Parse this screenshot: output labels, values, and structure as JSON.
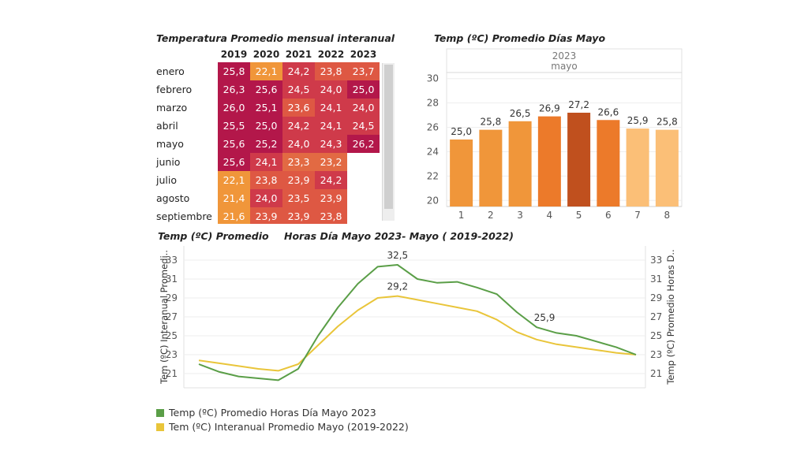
{
  "heatmap": {
    "title": "Temperatura Promedio mensual interanual",
    "years": [
      "2019",
      "2020",
      "2021",
      "2022",
      "2023"
    ],
    "months": [
      "enero",
      "febrero",
      "marzo",
      "abril",
      "mayo",
      "junio",
      "julio",
      "agosto",
      "septiembre"
    ],
    "values": [
      [
        "25,8",
        "22,1",
        "24,2",
        "23,8",
        "23,7"
      ],
      [
        "26,3",
        "25,6",
        "24,5",
        "24,0",
        "25,0"
      ],
      [
        "26,0",
        "25,1",
        "23,6",
        "24,1",
        "24,0"
      ],
      [
        "25,5",
        "25,0",
        "24,2",
        "24,1",
        "24,5"
      ],
      [
        "25,6",
        "25,2",
        "24,0",
        "24,3",
        "26,2"
      ],
      [
        "25,6",
        "24,1",
        "23,3",
        "23,2",
        ""
      ],
      [
        "22,1",
        "23,8",
        "23,9",
        "24,2",
        ""
      ],
      [
        "21,4",
        "24,0",
        "23,5",
        "23,9",
        ""
      ],
      [
        "21,6",
        "23,9",
        "23,9",
        "23,8",
        ""
      ]
    ]
  },
  "chart_data": [
    {
      "type": "bar",
      "title": "Temp (ºC) Promedio  Días Mayo",
      "header_year": "2023",
      "header_month": "mayo",
      "categories": [
        "1",
        "2",
        "3",
        "4",
        "5",
        "6",
        "7",
        "8"
      ],
      "values": [
        25.0,
        25.8,
        26.5,
        26.9,
        27.2,
        26.6,
        25.9,
        25.8
      ],
      "value_labels": [
        "25,0",
        "25,8",
        "26,5",
        "26,9",
        "27,2",
        "26,6",
        "25,9",
        "25,8"
      ],
      "colors": [
        "#F0963A",
        "#F0963A",
        "#F0963A",
        "#EC7A2A",
        "#C0501E",
        "#EC7A2A",
        "#FBBF77",
        "#FBBF77"
      ],
      "ylim": [
        19.5,
        30.5
      ],
      "yticks": [
        "20",
        "22",
        "24",
        "26",
        "28",
        "30"
      ],
      "grid": true
    },
    {
      "type": "line",
      "title_left": "Temp (ºC) Promedio",
      "title_right": "Horas Día  Mayo 2023- Mayo ( 2019-2022)",
      "ylabel_left": "Tem (ºC) Interanual Promedi..",
      "ylabel_right": "Temp (ºC) Promedio Horas D..",
      "ylim": [
        19.5,
        34.5
      ],
      "yticks": [
        "21",
        "23",
        "25",
        "27",
        "29",
        "31",
        "33"
      ],
      "grid": true,
      "series": [
        {
          "name": "Temp (ºC) Promedio Horas Día Mayo 2023",
          "color": "#5A9E47",
          "values": [
            22.0,
            21.2,
            20.7,
            20.5,
            20.3,
            21.5,
            25.0,
            28.0,
            30.5,
            32.3,
            32.5,
            31.0,
            30.6,
            30.7,
            30.1,
            29.4,
            27.5,
            25.9,
            25.3,
            25.0,
            24.4,
            23.8,
            23.0
          ],
          "labels": [
            {
              "index": 10,
              "text": "32,5"
            },
            {
              "index": 17,
              "text": "25,9"
            }
          ]
        },
        {
          "name": "Tem (ºC) Interanual Promedio Mayo (2019-2022)",
          "color": "#E9C53A",
          "values": [
            22.4,
            22.1,
            21.8,
            21.5,
            21.3,
            22.0,
            24.0,
            26.0,
            27.7,
            29.0,
            29.2,
            28.8,
            28.4,
            28.0,
            27.6,
            26.7,
            25.4,
            24.6,
            24.1,
            23.8,
            23.5,
            23.2,
            23.0
          ],
          "labels": [
            {
              "index": 10,
              "text": "29,2"
            }
          ]
        }
      ]
    }
  ]
}
